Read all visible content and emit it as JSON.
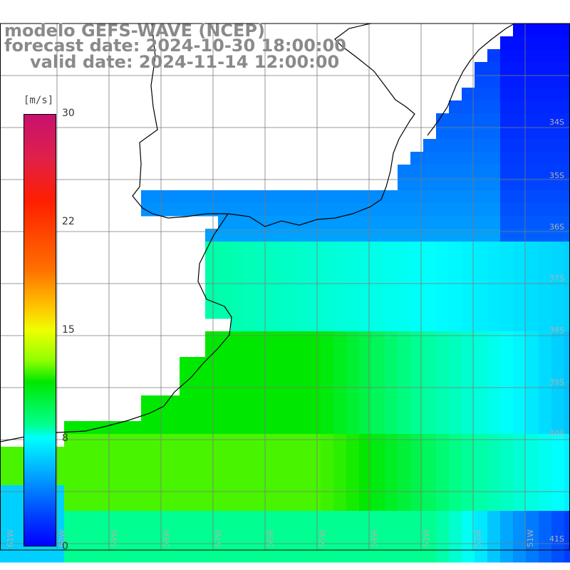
{
  "title": {
    "line1": "modelo GEFS-WAVE (NCEP)",
    "line2": "forecast date: 2024-10-30 18:00:00",
    "line3": "valid date: 2024-11-14 12:00:00"
  },
  "colorbar": {
    "unit": "[m/s]",
    "ticks": [
      "30",
      "22",
      "15",
      "8",
      "0"
    ],
    "tick_values": [
      30,
      22,
      15,
      8,
      0
    ],
    "range": [
      0,
      30
    ],
    "colors": [
      "#0000ff",
      "#0040ff",
      "#00a0ff",
      "#00ffff",
      "#00ff90",
      "#00e800",
      "#90ff00",
      "#f0ff00",
      "#ffc800",
      "#ff7000",
      "#ff1e00",
      "#e0204a",
      "#c8106e"
    ]
  },
  "map_labels": {
    "lat": [
      "34S",
      "35S",
      "36S",
      "37S",
      "38S",
      "39S",
      "40S",
      "41S"
    ],
    "lon": [
      "61W",
      "60W",
      "59W",
      "58W",
      "57W",
      "56W",
      "55W",
      "54W",
      "53W",
      "52W",
      "51W"
    ]
  },
  "colors": {
    "land": "#ffffff",
    "grid": "#7a7a7a",
    "coast": "#000000",
    "arrow": "#ffffff"
  }
}
